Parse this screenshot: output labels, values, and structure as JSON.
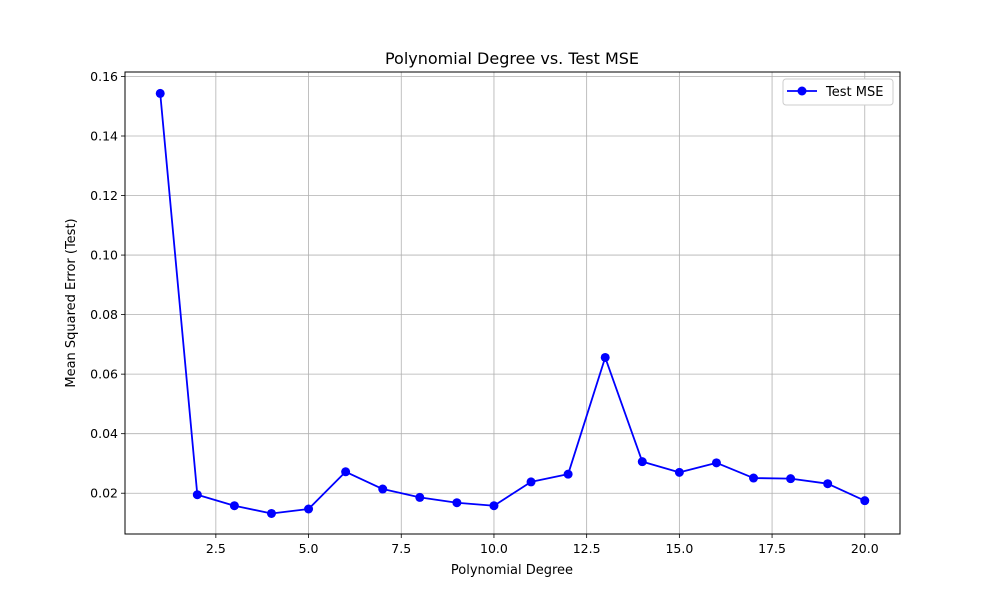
{
  "chart_data": {
    "type": "line",
    "title": "Polynomial Degree vs. Test MSE",
    "xlabel": "Polynomial Degree",
    "ylabel": "Mean Squared Error (Test)",
    "xlim": [
      0.05,
      20.95
    ],
    "ylim": [
      0.0063,
      0.1615
    ],
    "xticks": [
      2.5,
      5.0,
      7.5,
      10.0,
      12.5,
      15.0,
      17.5,
      20.0
    ],
    "xtick_labels": [
      "2.5",
      "5.0",
      "7.5",
      "10.0",
      "12.5",
      "15.0",
      "17.5",
      "20.0"
    ],
    "yticks": [
      0.02,
      0.04,
      0.06,
      0.08,
      0.1,
      0.12,
      0.14,
      0.16
    ],
    "ytick_labels": [
      "0.02",
      "0.04",
      "0.06",
      "0.08",
      "0.10",
      "0.12",
      "0.14",
      "0.16"
    ],
    "grid": true,
    "legend_position": "top-right",
    "series": [
      {
        "name": "Test MSE",
        "color": "#0000ff",
        "marker": "circle",
        "x": [
          1,
          2,
          3,
          4,
          5,
          6,
          7,
          8,
          9,
          10,
          11,
          12,
          13,
          14,
          15,
          16,
          17,
          18,
          19,
          20
        ],
        "y": [
          0.1543,
          0.0195,
          0.0158,
          0.0132,
          0.0147,
          0.0272,
          0.0214,
          0.0186,
          0.0168,
          0.0158,
          0.0238,
          0.0264,
          0.0656,
          0.0306,
          0.027,
          0.0302,
          0.0251,
          0.0249,
          0.0232,
          0.0175
        ]
      }
    ]
  }
}
